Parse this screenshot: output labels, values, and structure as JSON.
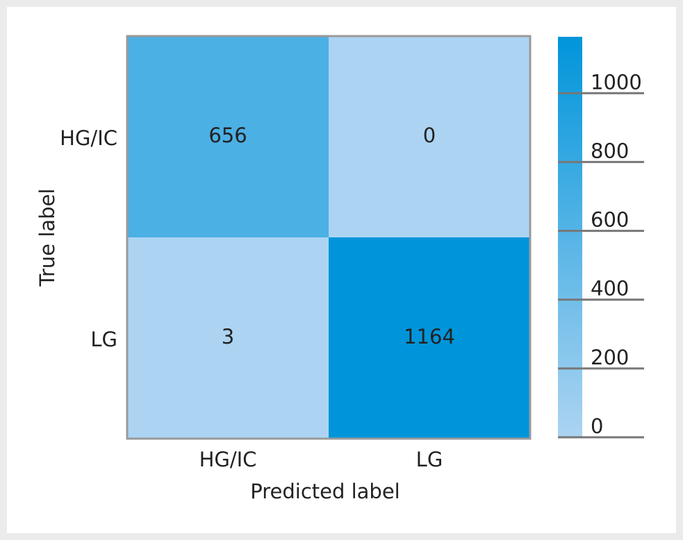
{
  "chart_data": {
    "type": "heatmap",
    "x_label": "Predicted label",
    "y_label": "True label",
    "x_categories": [
      "HG/IC",
      "LG"
    ],
    "y_categories": [
      "HG/IC",
      "LG"
    ],
    "values": [
      [
        656,
        0
      ],
      [
        3,
        1164
      ]
    ],
    "colors": [
      "#acd4f2",
      "#0095da"
    ],
    "clim": [
      0,
      1164
    ],
    "cticks": [
      0,
      200,
      400,
      600,
      800,
      1000
    ]
  }
}
